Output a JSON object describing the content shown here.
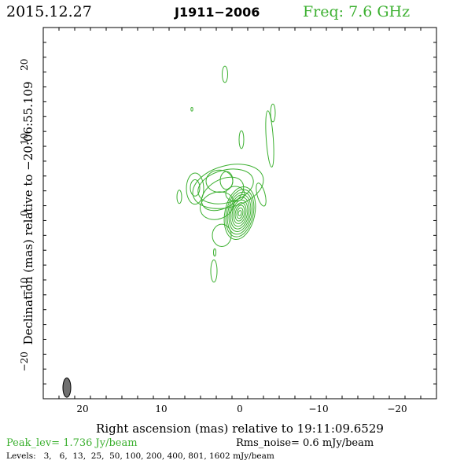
{
  "header": {
    "date": "2015.12.27",
    "source": "J1911−2006",
    "frequency": "Freq: 7.6 GHz"
  },
  "colors": {
    "contour": "#3cb030",
    "beam_fill": "#707070",
    "frame": "#000000"
  },
  "footer": {
    "peak": "Peak_lev=  1.736 Jy/beam",
    "rms": "Rms_noise=  0.6 mJy/beam",
    "levels": "Levels:   3,   6,  13,  25,  50, 100, 200, 400, 801, 1602 mJy/beam"
  },
  "chart_data": {
    "type": "contour",
    "xlabel": "Right ascension (mas) relative to 19:11:09.6529",
    "ylabel": "Declination (mas) relative to −20:06:55.109",
    "xlim": [
      25,
      -25
    ],
    "ylim": [
      -25,
      25
    ],
    "x_ticks": [
      20,
      10,
      0,
      -10,
      -20
    ],
    "x_tick_labels": [
      "20",
      "10",
      "0",
      "−10",
      "−20"
    ],
    "y_ticks": [
      20,
      10,
      0,
      -10,
      -20
    ],
    "y_tick_labels": [
      "20",
      "10",
      "0",
      "−10",
      "−20"
    ],
    "x_minor_step": 2,
    "y_minor_step": 2,
    "core": {
      "x": 0,
      "y": 0,
      "sx": 1.9,
      "sy": 3.6,
      "angle": 12,
      "n": 10
    },
    "contours": [
      {
        "cx": 1.5,
        "cy": 3.6,
        "rx": 4.6,
        "ry": 2.8,
        "angle": -15
      },
      {
        "cx": 1.8,
        "cy": 3.6,
        "rx": 3.6,
        "ry": 2.2,
        "angle": -15
      },
      {
        "cx": 2.6,
        "cy": 4.3,
        "rx": 1.7,
        "ry": 1.5,
        "angle": 0
      },
      {
        "cx": 2.2,
        "cy": 2.6,
        "rx": 2.9,
        "ry": 1.9,
        "angle": -30
      },
      {
        "cx": 2.9,
        "cy": 1.0,
        "rx": 2.2,
        "ry": 1.8,
        "angle": -20
      },
      {
        "cx": 5.7,
        "cy": 3.3,
        "rx": 1.1,
        "ry": 2.1,
        "angle": 0
      },
      {
        "cx": 5.7,
        "cy": 3.4,
        "rx": 0.6,
        "ry": 1.1,
        "angle": 0
      },
      {
        "cx": 1.7,
        "cy": 4.4,
        "rx": 0.8,
        "ry": 1.2,
        "angle": 0
      },
      {
        "cx": 0.6,
        "cy": 2.6,
        "rx": 1.2,
        "ry": 1.0,
        "angle": 0
      },
      {
        "cx": 7.7,
        "cy": 2.2,
        "rx": 0.3,
        "ry": 0.9,
        "angle": 0
      },
      {
        "cx": -2.7,
        "cy": 2.5,
        "rx": 0.5,
        "ry": 1.6,
        "angle": -15
      },
      {
        "cx": 1.9,
        "cy": 18.7,
        "rx": 0.35,
        "ry": 1.1,
        "angle": 0
      },
      {
        "cx": 6.1,
        "cy": 14.0,
        "rx": 0.12,
        "ry": 0.25,
        "angle": 0
      },
      {
        "cx": -0.2,
        "cy": 9.9,
        "rx": 0.3,
        "ry": 1.2,
        "angle": 0
      },
      {
        "cx": -3.8,
        "cy": 10.0,
        "rx": 0.45,
        "ry": 3.8,
        "angle": -4
      },
      {
        "cx": -4.2,
        "cy": 13.5,
        "rx": 0.3,
        "ry": 1.2,
        "angle": 0
      },
      {
        "cx": 2.3,
        "cy": -3.0,
        "rx": 1.2,
        "ry": 1.5,
        "angle": 0
      },
      {
        "cx": 3.3,
        "cy": -7.8,
        "rx": 0.4,
        "ry": 1.5,
        "angle": 0
      },
      {
        "cx": 3.2,
        "cy": -5.3,
        "rx": 0.15,
        "ry": 0.5,
        "angle": 0
      }
    ],
    "beam": {
      "x": 22.0,
      "y": -23.5,
      "major": 2.6,
      "minor": 1.0,
      "angle": 0
    }
  }
}
